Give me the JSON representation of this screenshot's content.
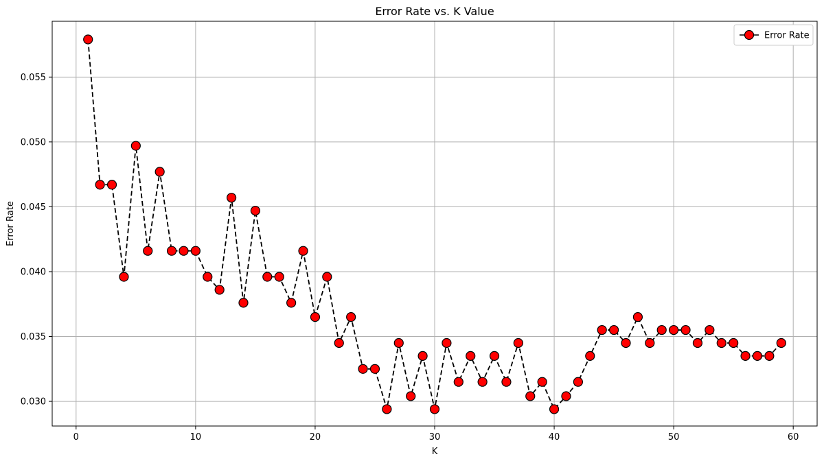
{
  "chart_data": {
    "type": "line",
    "title": "Error Rate vs. K Value",
    "xlabel": "K",
    "ylabel": "Error Rate",
    "xlim": [
      -2,
      62
    ],
    "ylim": [
      0.0281,
      0.0593
    ],
    "x_ticks": [
      0,
      10,
      20,
      30,
      40,
      50,
      60
    ],
    "y_ticks": [
      0.03,
      0.035,
      0.04,
      0.045,
      0.05,
      0.055
    ],
    "x_tick_labels": [
      "0",
      "10",
      "20",
      "30",
      "40",
      "50",
      "60"
    ],
    "y_tick_labels": [
      "0.030",
      "0.035",
      "0.040",
      "0.045",
      "0.050",
      "0.055"
    ],
    "grid": true,
    "legend_position": "top-right",
    "colors": {
      "line": "#000000",
      "marker_fill": "#ff0000",
      "marker_edge": "#000000",
      "grid": "#b0b0b0"
    },
    "series": [
      {
        "name": "Error Rate",
        "x": [
          1,
          2,
          3,
          4,
          5,
          6,
          7,
          8,
          9,
          10,
          11,
          12,
          13,
          14,
          15,
          16,
          17,
          18,
          19,
          20,
          21,
          22,
          23,
          24,
          25,
          26,
          27,
          28,
          29,
          30,
          31,
          32,
          33,
          34,
          35,
          36,
          37,
          38,
          39,
          40,
          41,
          42,
          43,
          44,
          45,
          46,
          47,
          48,
          49,
          50,
          51,
          52,
          53,
          54,
          55,
          56,
          57,
          58,
          59
        ],
        "values": [
          0.0579,
          0.0467,
          0.0467,
          0.0396,
          0.0497,
          0.0416,
          0.0477,
          0.0416,
          0.0416,
          0.0416,
          0.0396,
          0.0386,
          0.0457,
          0.0376,
          0.0447,
          0.0396,
          0.0396,
          0.0376,
          0.0416,
          0.0365,
          0.0396,
          0.0345,
          0.0365,
          0.0325,
          0.0325,
          0.0294,
          0.0345,
          0.0304,
          0.0335,
          0.0294,
          0.0345,
          0.0315,
          0.0335,
          0.0315,
          0.0335,
          0.0315,
          0.0345,
          0.0304,
          0.0315,
          0.0294,
          0.0304,
          0.0315,
          0.0335,
          0.0355,
          0.0355,
          0.0345,
          0.0365,
          0.0345,
          0.0355,
          0.0355,
          0.0355,
          0.0345,
          0.0355,
          0.0345,
          0.0345,
          0.0335,
          0.0335,
          0.0335,
          0.0345
        ]
      }
    ]
  }
}
